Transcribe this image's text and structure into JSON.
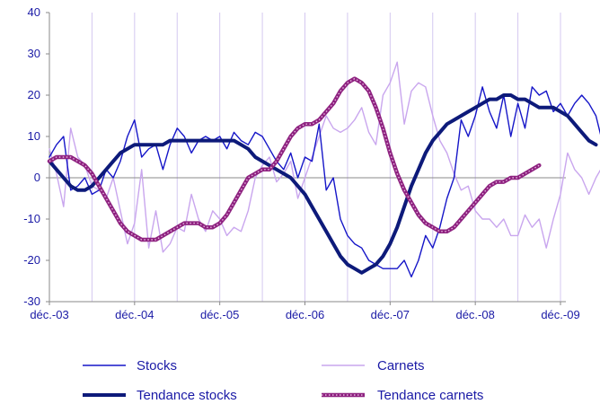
{
  "chart_data": {
    "type": "line",
    "title": "",
    "xlabel": "",
    "ylabel": "",
    "ylim": [
      -30,
      40
    ],
    "y_ticks": [
      40,
      30,
      20,
      10,
      0,
      -10,
      -20,
      -30
    ],
    "x_ticks": [
      "déc.-03",
      "déc.-04",
      "déc.-05",
      "déc.-06",
      "déc.-07",
      "déc.-08",
      "déc.-09"
    ],
    "x_start_label": "déc.-03",
    "x_unit": "months since déc.-03",
    "grid": {
      "vertical": true,
      "horizontal": false
    },
    "legend_position": "bottom",
    "colors": {
      "stocks": "#1616c8",
      "carnets": "#c9a6ee",
      "tendance_stocks": "#0d1a7a",
      "tendance_carnets": "#8e2280",
      "grid": "#d4c8f0",
      "axis": "#8a8a8a",
      "text": "#1a1aa6"
    },
    "series": [
      {
        "name": "Stocks",
        "values": [
          5,
          8,
          10,
          -3,
          -2,
          0,
          -4,
          -3,
          2,
          0,
          4,
          10,
          14,
          5,
          7,
          8,
          2,
          8,
          12,
          10,
          6,
          9,
          10,
          9,
          10,
          7,
          11,
          9,
          8,
          11,
          10,
          7,
          4,
          2,
          6,
          0,
          5,
          4,
          13,
          -3,
          0,
          -10,
          -14,
          -16,
          -17,
          -20,
          -21,
          -22,
          -22,
          -22,
          -20,
          -24,
          -20,
          -14,
          -17,
          -12,
          -5,
          0,
          14,
          10,
          15,
          22,
          16,
          12,
          20,
          10,
          18,
          12,
          22,
          20,
          21,
          16,
          18,
          15,
          18,
          20,
          18,
          15,
          8,
          7
        ]
      },
      {
        "name": "Carnets",
        "values": [
          7,
          1,
          -7,
          12,
          5,
          3,
          -2,
          -3,
          -5,
          0,
          -8,
          -16,
          -11,
          2,
          -17,
          -8,
          -18,
          -16,
          -12,
          -13,
          -4,
          -10,
          -13,
          -8,
          -10,
          -14,
          -12,
          -13,
          -8,
          0,
          3,
          5,
          -1,
          1,
          4,
          -5,
          0,
          5,
          10,
          15,
          12,
          11,
          12,
          14,
          17,
          11,
          8,
          20,
          23,
          28,
          13,
          21,
          23,
          22,
          15,
          9,
          6,
          1,
          -3,
          -2,
          -8,
          -10,
          -10,
          -12,
          -10,
          -14,
          -14,
          -9,
          -12,
          -10,
          -17,
          -10,
          -4,
          6,
          2,
          0,
          -4,
          0,
          3,
          2
        ]
      },
      {
        "name": "Tendance stocks",
        "values": [
          4,
          2,
          0,
          -2,
          -3,
          -3,
          -2,
          0,
          2,
          4,
          6,
          7,
          8,
          8,
          8,
          8,
          8,
          9,
          9,
          9,
          9,
          9,
          9,
          9,
          9,
          9,
          9,
          8,
          7,
          5,
          4,
          3,
          2,
          1,
          0,
          -2,
          -4,
          -7,
          -10,
          -13,
          -16,
          -19,
          -21,
          -22,
          -23,
          -22,
          -21,
          -19,
          -16,
          -12,
          -7,
          -2,
          2,
          6,
          9,
          11,
          13,
          14,
          15,
          16,
          17,
          18,
          19,
          19,
          20,
          20,
          19,
          19,
          18,
          17,
          17,
          17,
          16,
          15,
          13,
          11,
          9,
          8
        ]
      },
      {
        "name": "Tendance carnets",
        "values": [
          4,
          5,
          5,
          5,
          4,
          3,
          1,
          -2,
          -5,
          -8,
          -11,
          -13,
          -14,
          -15,
          -15,
          -15,
          -14,
          -13,
          -12,
          -11,
          -11,
          -11,
          -12,
          -12,
          -11,
          -9,
          -6,
          -3,
          0,
          1,
          2,
          2,
          4,
          7,
          10,
          12,
          13,
          13,
          14,
          16,
          18,
          21,
          23,
          24,
          23,
          21,
          17,
          12,
          6,
          1,
          -3,
          -6,
          -9,
          -11,
          -12,
          -13,
          -13,
          -12,
          -10,
          -8,
          -6,
          -4,
          -2,
          -1,
          -1,
          0,
          0,
          1,
          2,
          3
        ]
      }
    ]
  },
  "legend": [
    {
      "label": "Stocks",
      "style": "thin-dark"
    },
    {
      "label": "Carnets",
      "style": "thin-light"
    },
    {
      "label": "Tendance stocks",
      "style": "thick-dark"
    },
    {
      "label": "Tendance carnets",
      "style": "thick-dotted"
    }
  ]
}
